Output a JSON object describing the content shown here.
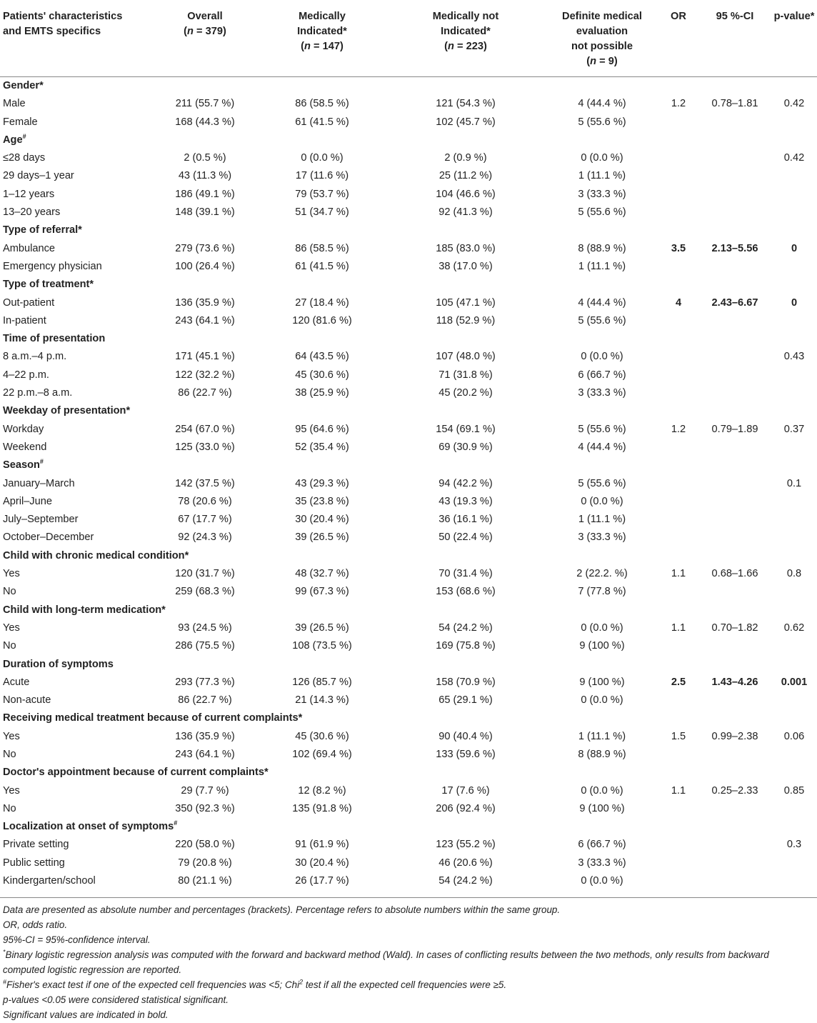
{
  "header": {
    "col0_line1": "Patients' characteristics",
    "col0_line2": "and EMTS specifics",
    "col1_line1": "Overall",
    "col1_line2": "(n = 379)",
    "col2_line1": "Medically",
    "col2_line2": "Indicated*",
    "col2_line3": "(n = 147)",
    "col3_line1": "Medically not",
    "col3_line2": "Indicated*",
    "col3_line3": "(n = 223)",
    "col4_line1": "Definite medical",
    "col4_line2": "evaluation",
    "col4_line3": "not possible",
    "col4_line4": "(n = 9)",
    "col5": "OR",
    "col6": "95 %-CI",
    "col7": "p-value*"
  },
  "rows": [
    {
      "type": "group",
      "label": "Gender*",
      "sup": ""
    },
    {
      "type": "data",
      "label": "Male",
      "c1": "211 (55.7 %)",
      "c2": "86 (58.5 %)",
      "c3": "121 (54.3 %)",
      "c4": "4 (44.4 %)",
      "or": "1.2",
      "ci": "0.78–1.81",
      "p": "0.42",
      "sig": false
    },
    {
      "type": "data",
      "label": "Female",
      "c1": "168 (44.3 %)",
      "c2": "61 (41.5 %)",
      "c3": "102 (45.7 %)",
      "c4": "5 (55.6 %)",
      "or": "",
      "ci": "",
      "p": "",
      "sig": false
    },
    {
      "type": "group",
      "label": "Age",
      "sup": "#"
    },
    {
      "type": "data",
      "label": "≤28 days",
      "c1": "2 (0.5 %)",
      "c2": "0 (0.0 %)",
      "c3": "2 (0.9 %)",
      "c4": "0 (0.0 %)",
      "or": "",
      "ci": "",
      "p": "0.42",
      "sig": false
    },
    {
      "type": "data",
      "label": "29 days–1 year",
      "c1": "43 (11.3 %)",
      "c2": "17 (11.6 %)",
      "c3": "25 (11.2 %)",
      "c4": "1 (11.1 %)",
      "or": "",
      "ci": "",
      "p": "",
      "sig": false
    },
    {
      "type": "data",
      "label": "1–12 years",
      "c1": "186 (49.1 %)",
      "c2": "79 (53.7 %)",
      "c3": "104 (46.6 %)",
      "c4": "3 (33.3 %)",
      "or": "",
      "ci": "",
      "p": "",
      "sig": false
    },
    {
      "type": "data",
      "label": "13–20 years",
      "c1": "148 (39.1 %)",
      "c2": "51 (34.7 %)",
      "c3": "92 (41.3 %)",
      "c4": "5 (55.6 %)",
      "or": "",
      "ci": "",
      "p": "",
      "sig": false
    },
    {
      "type": "group",
      "label": "Type of referral*",
      "sup": ""
    },
    {
      "type": "data",
      "label": "Ambulance",
      "c1": "279 (73.6 %)",
      "c2": "86 (58.5 %)",
      "c3": "185 (83.0 %)",
      "c4": "8 (88.9 %)",
      "or": "3.5",
      "ci": "2.13–5.56",
      "p": "0",
      "sig": true
    },
    {
      "type": "data",
      "label": "Emergency physician",
      "c1": "100 (26.4 %)",
      "c2": "61 (41.5 %)",
      "c3": "38 (17.0 %)",
      "c4": "1 (11.1 %)",
      "or": "",
      "ci": "",
      "p": "",
      "sig": false
    },
    {
      "type": "group",
      "label": "Type of treatment*",
      "sup": ""
    },
    {
      "type": "data",
      "label": "Out-patient",
      "c1": "136 (35.9 %)",
      "c2": "27 (18.4 %)",
      "c3": "105 (47.1 %)",
      "c4": "4 (44.4 %)",
      "or": "4",
      "ci": "2.43–6.67",
      "p": "0",
      "sig": true
    },
    {
      "type": "data",
      "label": "In-patient",
      "c1": "243 (64.1 %)",
      "c2": "120 (81.6 %)",
      "c3": "118 (52.9 %)",
      "c4": "5 (55.6 %)",
      "or": "",
      "ci": "",
      "p": "",
      "sig": false
    },
    {
      "type": "group",
      "label": "Time of presentation",
      "sup": ""
    },
    {
      "type": "data",
      "label": "8 a.m.–4 p.m.",
      "c1": "171 (45.1 %)",
      "c2": "64 (43.5 %)",
      "c3": "107 (48.0 %)",
      "c4": "0 (0.0 %)",
      "or": "",
      "ci": "",
      "p": "0.43",
      "sig": false
    },
    {
      "type": "data",
      "label": "4–22 p.m.",
      "c1": "122 (32.2 %)",
      "c2": "45 (30.6 %)",
      "c3": "71 (31.8 %)",
      "c4": "6 (66.7 %)",
      "or": "",
      "ci": "",
      "p": "",
      "sig": false
    },
    {
      "type": "data",
      "label": "22 p.m.–8 a.m.",
      "c1": "86 (22.7 %)",
      "c2": "38 (25.9 %)",
      "c3": "45 (20.2 %)",
      "c4": "3 (33.3 %)",
      "or": "",
      "ci": "",
      "p": "",
      "sig": false
    },
    {
      "type": "group",
      "label": "Weekday of presentation*",
      "sup": ""
    },
    {
      "type": "data",
      "label": "Workday",
      "c1": "254 (67.0 %)",
      "c2": "95 (64.6 %)",
      "c3": "154 (69.1 %)",
      "c4": "5 (55.6 %)",
      "or": "1.2",
      "ci": "0.79–1.89",
      "p": "0.37",
      "sig": false
    },
    {
      "type": "data",
      "label": "Weekend",
      "c1": "125 (33.0 %)",
      "c2": "52 (35.4 %)",
      "c3": "69 (30.9 %)",
      "c4": "4 (44.4 %)",
      "or": "",
      "ci": "",
      "p": "",
      "sig": false
    },
    {
      "type": "group",
      "label": "Season",
      "sup": "#"
    },
    {
      "type": "data",
      "label": "January–March",
      "c1": "142 (37.5 %)",
      "c2": "43 (29.3 %)",
      "c3": "94 (42.2 %)",
      "c4": "5 (55.6 %)",
      "or": "",
      "ci": "",
      "p": "0.1",
      "sig": false
    },
    {
      "type": "data",
      "label": "April–June",
      "c1": "78 (20.6 %)",
      "c2": "35 (23.8 %)",
      "c3": "43 (19.3 %)",
      "c4": "0 (0.0 %)",
      "or": "",
      "ci": "",
      "p": "",
      "sig": false
    },
    {
      "type": "data",
      "label": "July–September",
      "c1": "67 (17.7 %)",
      "c2": "30 (20.4 %)",
      "c3": "36 (16.1 %)",
      "c4": "1 (11.1 %)",
      "or": "",
      "ci": "",
      "p": "",
      "sig": false
    },
    {
      "type": "data",
      "label": "October–December",
      "c1": "92 (24.3 %)",
      "c2": "39 (26.5 %)",
      "c3": "50 (22.4 %)",
      "c4": "3 (33.3 %)",
      "or": "",
      "ci": "",
      "p": "",
      "sig": false
    },
    {
      "type": "group",
      "label": "Child with chronic medical condition*",
      "sup": ""
    },
    {
      "type": "data",
      "label": "Yes",
      "c1": "120 (31.7 %)",
      "c2": "48 (32.7 %)",
      "c3": "70 (31.4 %)",
      "c4": "2 (22.2. %)",
      "or": "1.1",
      "ci": "0.68–1.66",
      "p": "0.8",
      "sig": false
    },
    {
      "type": "data",
      "label": "No",
      "c1": "259 (68.3 %)",
      "c2": "99 (67.3 %)",
      "c3": "153 (68.6 %)",
      "c4": "7 (77.8 %)",
      "or": "",
      "ci": "",
      "p": "",
      "sig": false
    },
    {
      "type": "group",
      "label": "Child with long-term medication*",
      "sup": ""
    },
    {
      "type": "data",
      "label": "Yes",
      "c1": "93 (24.5 %)",
      "c2": "39 (26.5 %)",
      "c3": "54 (24.2 %)",
      "c4": "0 (0.0 %)",
      "or": "1.1",
      "ci": "0.70–1.82",
      "p": "0.62",
      "sig": false
    },
    {
      "type": "data",
      "label": "No",
      "c1": "286 (75.5 %)",
      "c2": "108 (73.5 %)",
      "c3": "169 (75.8 %)",
      "c4": "9 (100 %)",
      "or": "",
      "ci": "",
      "p": "",
      "sig": false
    },
    {
      "type": "group",
      "label": "Duration of symptoms",
      "sup": ""
    },
    {
      "type": "data",
      "label": "Acute",
      "c1": "293 (77.3 %)",
      "c2": "126 (85.7 %)",
      "c3": "158 (70.9 %)",
      "c4": "9 (100 %)",
      "or": "2.5",
      "ci": "1.43–4.26",
      "p": "0.001",
      "sig": true
    },
    {
      "type": "data",
      "label": "Non-acute",
      "c1": "86 (22.7 %)",
      "c2": "21 (14.3 %)",
      "c3": "65 (29.1 %)",
      "c4": "0 (0.0 %)",
      "or": "",
      "ci": "",
      "p": "",
      "sig": false
    },
    {
      "type": "group",
      "label": "Receiving medical treatment because of current complaints*",
      "sup": ""
    },
    {
      "type": "data",
      "label": "Yes",
      "c1": "136 (35.9 %)",
      "c2": "45 (30.6 %)",
      "c3": "90 (40.4 %)",
      "c4": "1 (11.1 %)",
      "or": "1.5",
      "ci": "0.99–2.38",
      "p": "0.06",
      "sig": false
    },
    {
      "type": "data",
      "label": "No",
      "c1": "243 (64.1 %)",
      "c2": "102 (69.4 %)",
      "c3": "133 (59.6 %)",
      "c4": "8 (88.9 %)",
      "or": "",
      "ci": "",
      "p": "",
      "sig": false
    },
    {
      "type": "group",
      "label": "Doctor's appointment because of current complaints*",
      "sup": ""
    },
    {
      "type": "data",
      "label": "Yes",
      "c1": "29 (7.7 %)",
      "c2": "12 (8.2 %)",
      "c3": "17 (7.6 %)",
      "c4": "0 (0.0 %)",
      "or": "1.1",
      "ci": "0.25–2.33",
      "p": "0.85",
      "sig": false
    },
    {
      "type": "data",
      "label": "No",
      "c1": "350 (92.3 %)",
      "c2": "135 (91.8 %)",
      "c3": "206 (92.4 %)",
      "c4": "9 (100 %)",
      "or": "",
      "ci": "",
      "p": "",
      "sig": false
    },
    {
      "type": "group",
      "label": "Localization at onset of symptoms",
      "sup": "#"
    },
    {
      "type": "data",
      "label": "Private setting",
      "c1": "220 (58.0 %)",
      "c2": "91 (61.9 %)",
      "c3": "123 (55.2 %)",
      "c4": "6 (66.7 %)",
      "or": "",
      "ci": "",
      "p": "0.3",
      "sig": false
    },
    {
      "type": "data",
      "label": "Public setting",
      "c1": "79 (20.8 %)",
      "c2": "30 (20.4 %)",
      "c3": "46 (20.6 %)",
      "c4": "3 (33.3 %)",
      "or": "",
      "ci": "",
      "p": "",
      "sig": false
    },
    {
      "type": "data",
      "label": "Kindergarten/school",
      "c1": "80 (21.1 %)",
      "c2": "26 (17.7 %)",
      "c3": "54 (24.2 %)",
      "c4": "0 (0.0 %)",
      "or": "",
      "ci": "",
      "p": "",
      "sig": false
    }
  ],
  "footnotes": {
    "f1": "Data are presented as absolute number and percentages (brackets). Percentage refers to absolute numbers within the same group.",
    "f2": "OR, odds ratio.",
    "f3": "95%-CI = 95%-confidence interval.",
    "f4_mark": "*",
    "f4": "Binary logistic regression analysis was computed with the forward and backward method (Wald). In cases of conflicting results between the two methods, only results from backward computed logistic regression are reported.",
    "f5_mark": "#",
    "f5_a": "Fisher's exact test if one of the expected cell frequencies was <5; Chi",
    "f5_sup": "2",
    "f5_b": " test if all the expected cell frequencies were ≥5.",
    "f6": "p-values <0.05 were considered statistical significant.",
    "f7": "Significant values are indicated in bold."
  }
}
